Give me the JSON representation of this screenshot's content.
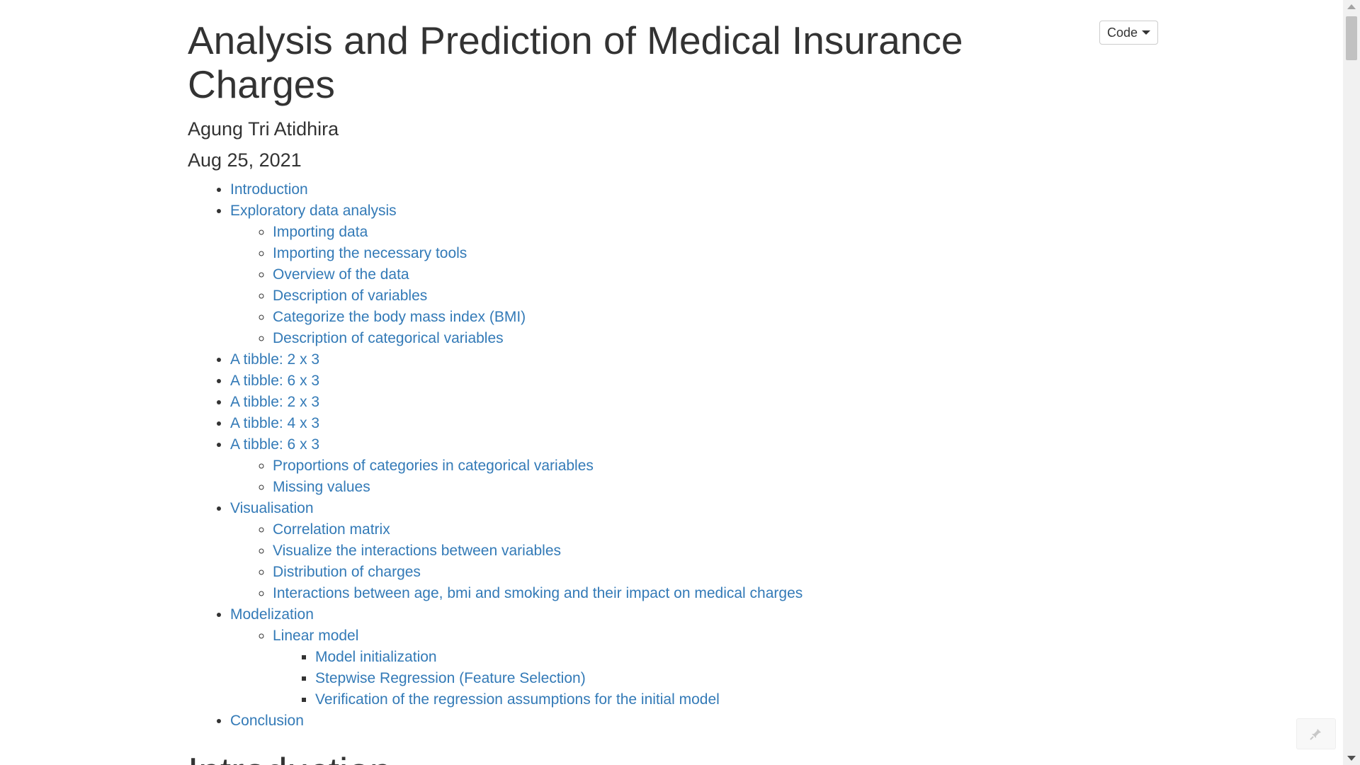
{
  "header": {
    "title": "Analysis and Prediction of Medical Insurance Charges",
    "author": "Agung Tri Atidhira",
    "date": "Aug 25, 2021",
    "code_button_label": "Code"
  },
  "toc": {
    "intro": "Introduction",
    "eda": {
      "label": "Exploratory data analysis",
      "items": [
        "Importing data",
        "Importing the necessary tools",
        "Overview of the data",
        "Description of variables",
        "Categorize the body mass index (BMI)",
        "Description of categorical variables"
      ]
    },
    "tibbles": [
      "A tibble: 2 x 3",
      "A tibble: 6 x 3",
      "A tibble: 2 x 3",
      "A tibble: 4 x 3",
      "A tibble: 6 x 3"
    ],
    "tibble_sub": [
      "Proportions of categories in categorical variables",
      "Missing values"
    ],
    "vis": {
      "label": "Visualisation",
      "items": [
        "Correlation matrix",
        "Visualize the interactions between variables",
        "Distribution of charges",
        "Interactions between age, bmi and smoking and their impact on medical charges"
      ]
    },
    "model": {
      "label": "Modelization",
      "linear": "Linear model",
      "items": [
        "Model initialization",
        "Stepwise Regression (Feature Selection)",
        "Verification of the regression assumptions for the initial model"
      ]
    },
    "conclusion": "Conclusion"
  },
  "next_section": {
    "heading": "Introduction"
  },
  "icons": {
    "floating_button": "pin-icon",
    "code_caret": "caret-down-icon"
  },
  "colors": {
    "link": "#337ab7",
    "text": "#333333"
  }
}
